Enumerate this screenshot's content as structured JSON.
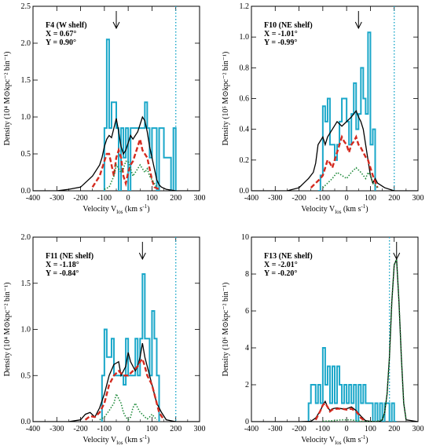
{
  "chart_data": [
    {
      "type": "line",
      "annotation": [
        "F4 (W shelf)",
        "X =  0.67°",
        "Y =  0.90°"
      ],
      "xlabel": "Velocity V",
      "xlabel_sub": "los",
      "xlabel_units": " (km s",
      "xlabel_sup": "-1",
      "xlabel_close": ")",
      "ylabel": "Density (10⁴ M⊙kpc⁻² bin⁻¹)",
      "xlim": [
        -400,
        300
      ],
      "ylim": [
        0,
        2.5
      ],
      "xticks": [
        -400,
        -300,
        -200,
        -100,
        0,
        100,
        200,
        300
      ],
      "yticks": [
        0.0,
        0.5,
        1.0,
        1.5,
        2.0,
        2.5
      ],
      "ytick_labels": [
        "0.0",
        "0.5",
        "1.0",
        "1.5",
        "2.0",
        "2.5"
      ],
      "vline_dotted": 200,
      "arrow_x": -50,
      "series": [
        {
          "style": "histogram",
          "color": "#1aa7c9",
          "bin_edges": [
            -100,
            -90,
            -80,
            -70,
            -60,
            -50,
            -40,
            -30,
            -20,
            -10,
            0,
            10,
            20,
            30,
            40,
            50,
            60,
            70,
            80,
            90,
            100,
            110,
            120,
            130,
            140,
            150,
            160,
            170,
            180,
            190,
            200
          ],
          "values": [
            0.85,
            2.05,
            0.85,
            1.2,
            1.2,
            0.85,
            0.0,
            0.85,
            0.45,
            0.85,
            0.0,
            0.85,
            0.85,
            0.85,
            0.85,
            0.85,
            0.85,
            1.2,
            0.85,
            0.45,
            0.85,
            0.85,
            0.0,
            0.85,
            0.85,
            0.45,
            0.45,
            0.45,
            0.0,
            0.85
          ]
        },
        {
          "style": "solid",
          "color": "#000000",
          "x": [
            -400,
            -300,
            -250,
            -200,
            -150,
            -120,
            -110,
            -100,
            -90,
            -80,
            -70,
            -60,
            -50,
            -40,
            -30,
            -20,
            -10,
            0,
            10,
            20,
            30,
            40,
            50,
            60,
            70,
            80,
            90,
            100,
            110,
            120,
            130,
            140,
            160,
            200,
            300
          ],
          "y": [
            0,
            0,
            0.02,
            0.05,
            0.2,
            0.35,
            0.45,
            0.6,
            0.7,
            0.75,
            0.72,
            0.85,
            0.98,
            0.8,
            0.6,
            0.5,
            0.55,
            0.65,
            0.75,
            0.7,
            0.75,
            0.8,
            0.9,
            1.0,
            0.95,
            0.8,
            0.6,
            0.45,
            0.3,
            0.15,
            0.08,
            0.05,
            0.02,
            0,
            0
          ]
        },
        {
          "style": "dashed",
          "color": "#d42a1f",
          "x": [
            -150,
            -120,
            -100,
            -90,
            -80,
            -70,
            -60,
            -50,
            -40,
            -30,
            -20,
            -10,
            0,
            10,
            20,
            30,
            40,
            50,
            60,
            70,
            80,
            90,
            100,
            110,
            130
          ],
          "y": [
            0.05,
            0.2,
            0.4,
            0.5,
            0.5,
            0.35,
            0.2,
            0.45,
            0.55,
            0.45,
            0.2,
            0.1,
            0.25,
            0.35,
            0.4,
            0.5,
            0.6,
            0.7,
            0.55,
            0.5,
            0.45,
            0.3,
            0.15,
            0.05,
            0.02
          ]
        },
        {
          "style": "dotted",
          "color": "#1e8a3a",
          "x": [
            -100,
            -80,
            -60,
            -50,
            -40,
            -30,
            -20,
            -10,
            0,
            10,
            20,
            30,
            40,
            50,
            60,
            70,
            80,
            90,
            100,
            110,
            120
          ],
          "y": [
            0.02,
            0.05,
            0.2,
            0.35,
            0.3,
            0.25,
            0.3,
            0.4,
            0.4,
            0.3,
            0.2,
            0.25,
            0.3,
            0.35,
            0.3,
            0.25,
            0.3,
            0.2,
            0.15,
            0.1,
            0.05
          ]
        }
      ]
    },
    {
      "type": "line",
      "annotation": [
        "F10 (NE shelf)",
        "X = -1.01°",
        "Y = -0.99°"
      ],
      "xlabel": "Velocity V",
      "xlabel_sub": "los",
      "xlabel_units": " (km s",
      "xlabel_sup": "-1",
      "xlabel_close": ")",
      "ylabel": "Density (10⁵ M⊙kpc⁻² bin⁻¹)",
      "xlim": [
        -400,
        300
      ],
      "ylim": [
        0,
        1.2
      ],
      "xticks": [
        -400,
        -300,
        -200,
        -100,
        0,
        100,
        200,
        300
      ],
      "yticks": [
        0.0,
        0.2,
        0.4,
        0.6,
        0.8,
        1.0,
        1.2
      ],
      "ytick_labels": [
        "0.0",
        "0.2",
        "0.4",
        "0.6",
        "0.8",
        "1.0",
        "1.2"
      ],
      "vline_dotted": 200,
      "arrow_x": 50,
      "series": [
        {
          "style": "histogram",
          "color": "#1aa7c9",
          "bin_edges": [
            -120,
            -110,
            -100,
            -90,
            -80,
            -70,
            -60,
            -50,
            -40,
            -30,
            -20,
            -10,
            0,
            10,
            20,
            30,
            40,
            50,
            60,
            70,
            80,
            90,
            100,
            110,
            120
          ],
          "values": [
            0.0,
            0.1,
            0.55,
            0.45,
            0.6,
            0.3,
            0.3,
            0.2,
            0.3,
            0.45,
            0.6,
            0.6,
            0.45,
            0.3,
            0.5,
            0.7,
            0.4,
            0.5,
            0.8,
            0.6,
            0.5,
            1.03,
            0.3,
            0.4
          ]
        },
        {
          "style": "solid",
          "color": "#000000",
          "x": [
            -400,
            -250,
            -200,
            -180,
            -160,
            -140,
            -130,
            -120,
            -100,
            -90,
            -80,
            -60,
            -40,
            -20,
            0,
            20,
            40,
            50,
            60,
            70,
            80,
            90,
            100,
            110,
            120,
            130,
            160,
            200,
            300
          ],
          "y": [
            0,
            0,
            0.02,
            0.05,
            0.08,
            0.12,
            0.18,
            0.3,
            0.35,
            0.3,
            0.35,
            0.4,
            0.45,
            0.42,
            0.45,
            0.48,
            0.52,
            0.48,
            0.45,
            0.4,
            0.3,
            0.2,
            0.1,
            0.05,
            0.08,
            0.05,
            0.02,
            0,
            0
          ]
        },
        {
          "style": "dashed",
          "color": "#d42a1f",
          "x": [
            -150,
            -130,
            -110,
            -100,
            -90,
            -80,
            -70,
            -60,
            -50,
            -40,
            -30,
            -20,
            -10,
            0,
            10,
            20,
            30,
            40,
            50,
            60,
            70,
            80,
            90,
            100,
            110,
            130
          ],
          "y": [
            0.02,
            0.05,
            0.08,
            0.1,
            0.15,
            0.2,
            0.18,
            0.15,
            0.2,
            0.25,
            0.3,
            0.35,
            0.32,
            0.3,
            0.25,
            0.3,
            0.32,
            0.35,
            0.3,
            0.28,
            0.25,
            0.22,
            0.2,
            0.15,
            0.1,
            0.02
          ]
        },
        {
          "style": "dotted",
          "color": "#1e8a3a",
          "x": [
            -100,
            -80,
            -60,
            -40,
            -20,
            0,
            20,
            40,
            60,
            70,
            80,
            90,
            100,
            110,
            130
          ],
          "y": [
            0.02,
            0.05,
            0.08,
            0.12,
            0.1,
            0.08,
            0.12,
            0.15,
            0.12,
            0.1,
            0.08,
            0.12,
            0.1,
            0.05,
            0.02
          ]
        }
      ]
    },
    {
      "type": "line",
      "annotation": [
        "F11 (NE shelf)",
        "X = -1.18°",
        "Y = -0.84°"
      ],
      "xlabel": "Velocity V",
      "xlabel_sub": "los",
      "xlabel_units": " (km s",
      "xlabel_sup": "-1",
      "xlabel_close": ")",
      "ylabel": "Density (10⁴ M⊙kpc⁻² bin⁻¹)",
      "xlim": [
        -400,
        300
      ],
      "ylim": [
        0,
        2.0
      ],
      "xticks": [
        -400,
        -300,
        -200,
        -100,
        0,
        100,
        200,
        300
      ],
      "yticks": [
        0.0,
        0.5,
        1.0,
        1.5,
        2.0
      ],
      "ytick_labels": [
        "0.0",
        "0.5",
        "1.0",
        "1.5",
        "2.0"
      ],
      "vline_dotted": 200,
      "arrow_x": 60,
      "series": [
        {
          "style": "histogram",
          "color": "#1aa7c9",
          "bin_edges": [
            -110,
            -100,
            -90,
            -80,
            -70,
            -60,
            -50,
            -40,
            -30,
            -20,
            -10,
            0,
            10,
            20,
            30,
            40,
            50,
            60,
            70,
            80,
            90,
            100,
            110,
            120,
            130
          ],
          "values": [
            0.5,
            1.0,
            0.7,
            0.7,
            0.9,
            0.5,
            0.5,
            0.5,
            0.5,
            0.4,
            0.9,
            0.5,
            0.5,
            0.5,
            0.9,
            0.5,
            0.9,
            1.6,
            0.9,
            0.9,
            0.5,
            1.2,
            0.9,
            0.5
          ]
        },
        {
          "style": "solid",
          "color": "#000000",
          "x": [
            -400,
            -250,
            -200,
            -180,
            -160,
            -140,
            -120,
            -100,
            -80,
            -60,
            -40,
            -30,
            -20,
            -10,
            0,
            10,
            20,
            30,
            40,
            50,
            60,
            70,
            80,
            90,
            100,
            110,
            120,
            140,
            160,
            200,
            300
          ],
          "y": [
            0,
            0,
            0.02,
            0.08,
            0.1,
            0.05,
            0.15,
            0.3,
            0.5,
            0.62,
            0.65,
            0.5,
            0.55,
            0.6,
            0.75,
            0.65,
            0.6,
            0.55,
            0.6,
            0.7,
            0.85,
            0.7,
            0.6,
            0.5,
            0.4,
            0.3,
            0.2,
            0.1,
            0.02,
            0,
            0
          ]
        },
        {
          "style": "dashed",
          "color": "#d42a1f",
          "x": [
            -180,
            -160,
            -140,
            -120,
            -100,
            -80,
            -60,
            -40,
            -20,
            0,
            20,
            40,
            50,
            60,
            70,
            80,
            90,
            100,
            110,
            120,
            130,
            150
          ],
          "y": [
            0.02,
            0.06,
            0.05,
            0.1,
            0.2,
            0.4,
            0.5,
            0.55,
            0.5,
            0.5,
            0.55,
            0.6,
            0.65,
            0.68,
            0.6,
            0.5,
            0.45,
            0.4,
            0.3,
            0.2,
            0.1,
            0.02
          ]
        },
        {
          "style": "dotted",
          "color": "#1e8a3a",
          "x": [
            -120,
            -100,
            -80,
            -60,
            -50,
            -40,
            -30,
            -20,
            -10,
            0,
            10,
            20,
            30,
            40,
            50,
            60,
            70,
            80,
            90,
            100,
            120
          ],
          "y": [
            0.02,
            0.05,
            0.12,
            0.2,
            0.3,
            0.25,
            0.2,
            0.1,
            0.05,
            0.02,
            0.05,
            0.15,
            0.2,
            0.15,
            0.1,
            0.08,
            0.05,
            0.03,
            0.05,
            0.08,
            0.02
          ]
        }
      ]
    },
    {
      "type": "line",
      "annotation": [
        "F13 (NE shelf)",
        "X = -2.01°",
        "Y = -0.20°"
      ],
      "xlabel": "Velocity V",
      "xlabel_sub": "los",
      "xlabel_units": " (km s",
      "xlabel_sup": "-1",
      "xlabel_close": ")",
      "ylabel": "Density (10⁶ M⊙kpc⁻² bin⁻¹)",
      "xlim": [
        -400,
        300
      ],
      "ylim": [
        0,
        10
      ],
      "xticks": [
        -400,
        -300,
        -200,
        -100,
        0,
        100,
        200,
        300
      ],
      "yticks": [
        0,
        2,
        4,
        6,
        8,
        10
      ],
      "ytick_labels": [
        "0",
        "2",
        "4",
        "6",
        "8",
        "10"
      ],
      "vline_dotted": 180,
      "arrow_x": 210,
      "series": [
        {
          "style": "histogram",
          "color": "#1aa7c9",
          "bin_edges": [
            -160,
            -150,
            -140,
            -130,
            -120,
            -110,
            -100,
            -90,
            -80,
            -70,
            -60,
            -50,
            -40,
            -30,
            -20,
            -10,
            0,
            10,
            20,
            30,
            40,
            50,
            60,
            70,
            80,
            90,
            100,
            110,
            120,
            130,
            140,
            150,
            160,
            170,
            180,
            190,
            200,
            210
          ],
          "values": [
            1.0,
            2.0,
            2.0,
            1.0,
            2.0,
            1.0,
            4.0,
            2.0,
            3.0,
            1.0,
            3.0,
            1.0,
            3.0,
            2.0,
            1.0,
            2.0,
            1.0,
            2.0,
            1.0,
            2.0,
            0.0,
            2.0,
            1.0,
            2.0,
            1.0,
            1.0,
            1.0,
            0.0,
            1.0,
            0.0,
            1.0,
            0.0,
            1.0,
            1.0,
            0.0,
            1.0,
            0.0
          ]
        },
        {
          "style": "solid",
          "color": "#000000",
          "x": [
            -400,
            -200,
            -150,
            -130,
            -110,
            -100,
            -90,
            -80,
            -70,
            -60,
            -40,
            -20,
            0,
            20,
            40,
            60,
            80,
            100,
            120,
            140,
            150,
            160,
            170,
            180,
            190,
            200,
            210,
            220,
            230,
            240,
            250,
            300
          ],
          "y": [
            0,
            0,
            0.02,
            0.2,
            0.6,
            0.9,
            1.1,
            0.8,
            0.6,
            0.7,
            0.75,
            0.7,
            0.7,
            0.8,
            0.6,
            0.3,
            0.05,
            0.02,
            0,
            0.02,
            0.1,
            0.5,
            1.5,
            3.5,
            6.5,
            8.5,
            8.8,
            6.5,
            3.5,
            1.0,
            0.1,
            0
          ]
        },
        {
          "style": "dashed",
          "color": "#d42a1f",
          "x": [
            -130,
            -110,
            -100,
            -90,
            -80,
            -70,
            -60,
            -40,
            -20,
            0,
            20,
            40,
            50,
            60,
            80
          ],
          "y": [
            0.1,
            0.6,
            0.9,
            1.0,
            0.8,
            0.55,
            0.65,
            0.7,
            0.7,
            0.65,
            0.7,
            0.55,
            0.4,
            0.2,
            0.02
          ]
        },
        {
          "style": "dotted",
          "color": "#1e8a3a",
          "x": [
            -100,
            -60,
            -20,
            0,
            20,
            40,
            60,
            120,
            150,
            160,
            170,
            180,
            190,
            200,
            210,
            220,
            230,
            240,
            250
          ],
          "y": [
            0.02,
            0.05,
            0.1,
            0.1,
            0.1,
            0.05,
            0.02,
            0,
            0.1,
            0.5,
            1.5,
            3.5,
            6.5,
            8.5,
            8.8,
            6.5,
            3.5,
            1.0,
            0.1
          ]
        }
      ]
    }
  ]
}
